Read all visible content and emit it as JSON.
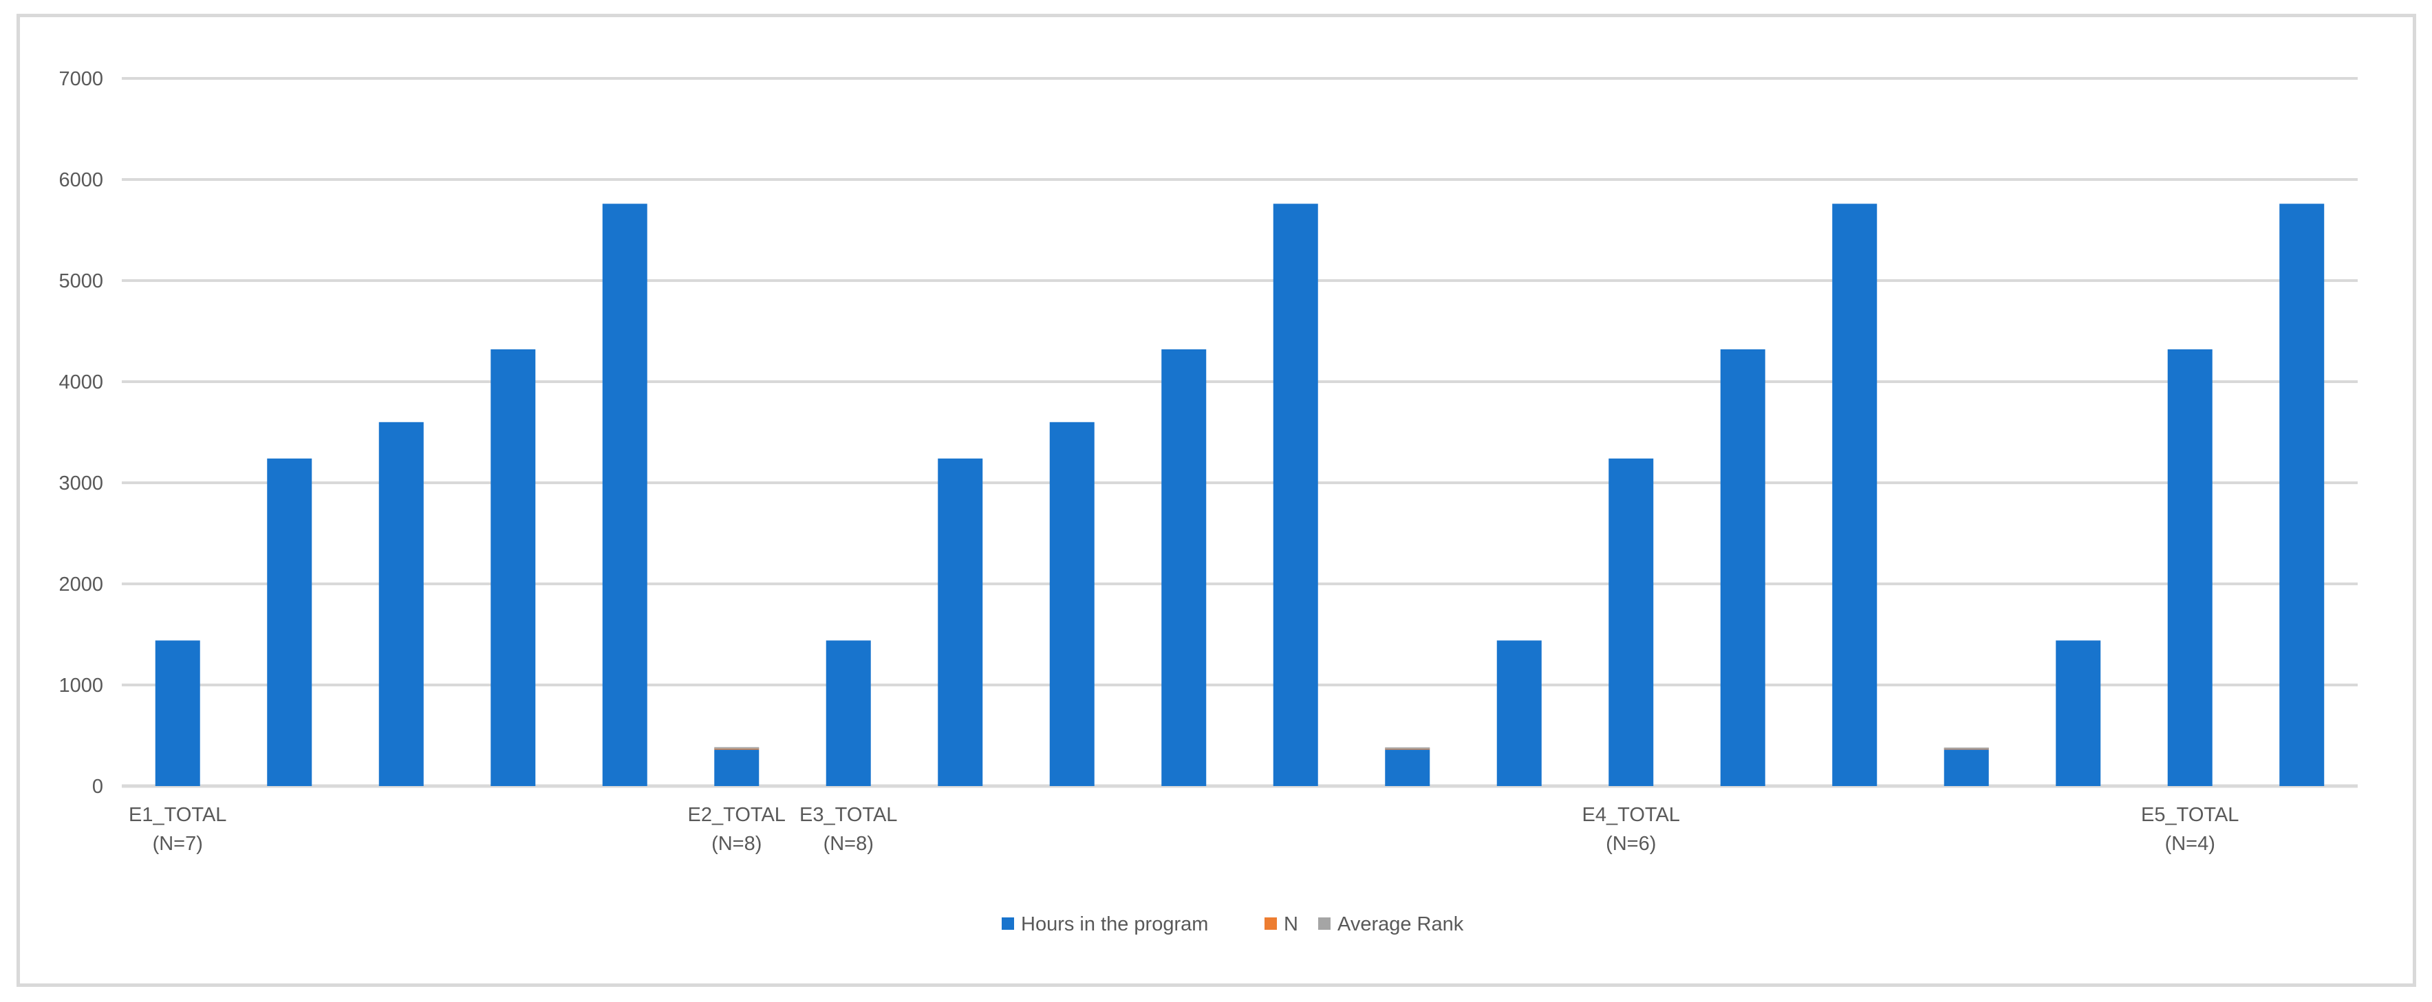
{
  "chart_data": {
    "type": "bar",
    "stacked": true,
    "title": "",
    "xlabel": "",
    "ylabel": "",
    "ylim": [
      0,
      7000
    ],
    "yticks": [
      0,
      1000,
      2000,
      3000,
      4000,
      5000,
      6000,
      7000
    ],
    "grid": true,
    "legend_position": "bottom",
    "categories": [
      [
        "E1_TOTAL",
        "(N=7)"
      ],
      [
        "",
        ""
      ],
      [
        "",
        ""
      ],
      [
        "",
        ""
      ],
      [
        "",
        ""
      ],
      [
        "E2_TOTAL",
        "(N=8)"
      ],
      [
        "E3_TOTAL",
        "(N=8)"
      ],
      [
        "",
        ""
      ],
      [
        "",
        ""
      ],
      [
        "",
        ""
      ],
      [
        "",
        ""
      ],
      [
        "",
        ""
      ],
      [
        "",
        ""
      ],
      [
        "E4_TOTAL",
        "(N=6)"
      ],
      [
        "",
        ""
      ],
      [
        "",
        ""
      ],
      [
        "",
        ""
      ],
      [
        "",
        ""
      ],
      [
        "E5_TOTAL",
        "(N=4)"
      ],
      [
        "",
        ""
      ]
    ],
    "series": [
      {
        "name": "Hours in the program",
        "color": "#1874cd",
        "values": [
          1440,
          3240,
          3600,
          4320,
          5760,
          360,
          1440,
          3240,
          3600,
          4320,
          5760,
          360,
          1440,
          3240,
          4320,
          5760,
          360,
          1440,
          4320,
          5760
        ]
      },
      {
        "name": "N",
        "color": "#ed7d31",
        "values": [
          0,
          0,
          0,
          0,
          0,
          8,
          0,
          0,
          0,
          0,
          0,
          6,
          0,
          0,
          0,
          0,
          4,
          0,
          0,
          0
        ]
      },
      {
        "name": "Average Rank",
        "color": "#a5a5a5",
        "values": [
          0,
          0,
          0,
          0,
          0,
          4.5,
          0,
          0,
          0,
          0,
          0,
          3.5,
          0,
          0,
          0,
          0,
          2.5,
          0,
          0,
          0
        ]
      }
    ]
  }
}
